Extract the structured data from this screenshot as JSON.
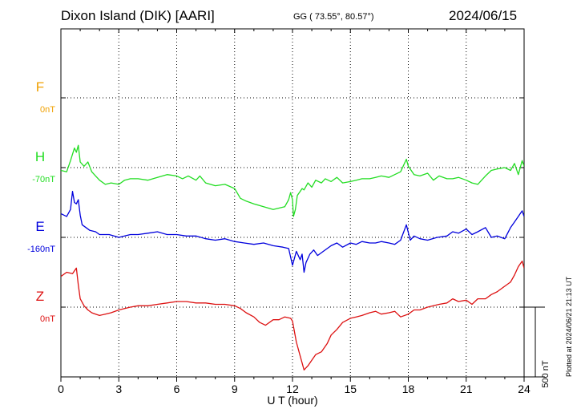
{
  "header": {
    "station": "Dixon Island (DIK)  [AARI]",
    "coords": "GG ( 73.55°,  80.57°)",
    "date": "2024/06/15"
  },
  "footer": {
    "plotted": "Plotted at 2024/06/21 21:13 UT"
  },
  "chart_data": {
    "type": "line",
    "xlabel": "U T (hour)",
    "xlim": [
      0,
      24
    ],
    "xticks": [
      0,
      3,
      6,
      9,
      12,
      15,
      18,
      21,
      24
    ],
    "scale_bar": {
      "label": "500 nT",
      "value": 500
    },
    "panels": [
      {
        "name": "F",
        "base_label": "0nT",
        "color": "#f0a000"
      },
      {
        "name": "H",
        "base_label": "-70nT",
        "color": "#22dd22"
      },
      {
        "name": "E",
        "base_label": "-160nT",
        "color": "#0000dd"
      },
      {
        "name": "Z",
        "base_label": "0nT",
        "color": "#dd1111"
      }
    ],
    "series": [
      {
        "name": "H",
        "color": "#22dd22",
        "x": [
          0,
          0.3,
          0.5,
          0.7,
          0.8,
          0.9,
          1.0,
          1.2,
          1.4,
          1.6,
          1.8,
          2.0,
          2.3,
          2.6,
          3.0,
          3.3,
          3.6,
          4.0,
          4.5,
          5.0,
          5.5,
          6.0,
          6.3,
          6.6,
          7.0,
          7.2,
          7.5,
          8.0,
          8.5,
          9.0,
          9.3,
          9.6,
          10.0,
          10.5,
          11.0,
          11.3,
          11.6,
          11.8,
          11.9,
          12.0,
          12.05,
          12.15,
          12.25,
          12.4,
          12.5,
          12.6,
          12.8,
          13.0,
          13.2,
          13.5,
          13.7,
          14.0,
          14.3,
          14.6,
          15.0,
          15.3,
          15.6,
          16.0,
          16.3,
          16.6,
          17.0,
          17.3,
          17.6,
          17.8,
          17.9,
          18.0,
          18.1,
          18.3,
          18.6,
          19.0,
          19.3,
          19.6,
          20.0,
          20.3,
          20.6,
          21.0,
          21.3,
          21.6,
          22.0,
          22.3,
          22.6,
          23.0,
          23.3,
          23.5,
          23.7,
          23.9,
          24.0
        ],
        "y": [
          -20,
          -30,
          50,
          140,
          110,
          160,
          40,
          10,
          40,
          -30,
          -60,
          -90,
          -120,
          -110,
          -120,
          -90,
          -80,
          -80,
          -90,
          -70,
          -50,
          -60,
          -80,
          -60,
          -90,
          -60,
          -110,
          -130,
          -120,
          -150,
          -220,
          -240,
          -260,
          -280,
          -300,
          -290,
          -280,
          -230,
          -180,
          -230,
          -350,
          -300,
          -200,
          -170,
          -150,
          -160,
          -110,
          -140,
          -90,
          -110,
          -80,
          -100,
          -70,
          -110,
          -100,
          -90,
          -80,
          -80,
          -70,
          -60,
          -70,
          -50,
          -30,
          30,
          60,
          10,
          -10,
          -50,
          -60,
          -40,
          -90,
          -60,
          -80,
          -80,
          -70,
          -90,
          -110,
          -120,
          -60,
          -20,
          -10,
          0,
          -20,
          30,
          -50,
          50,
          10
        ]
      },
      {
        "name": "E",
        "color": "#0000dd",
        "x": [
          0,
          0.3,
          0.5,
          0.6,
          0.7,
          0.8,
          0.9,
          1.0,
          1.1,
          1.3,
          1.5,
          1.8,
          2.0,
          2.5,
          3.0,
          3.3,
          3.6,
          4.0,
          4.5,
          5.0,
          5.5,
          6.0,
          6.5,
          7.0,
          7.5,
          8.0,
          8.5,
          9.0,
          9.5,
          10.0,
          10.5,
          11.0,
          11.5,
          11.8,
          12.0,
          12.2,
          12.4,
          12.5,
          12.6,
          12.7,
          12.9,
          13.1,
          13.3,
          13.6,
          14.0,
          14.3,
          14.6,
          15.0,
          15.3,
          15.6,
          16.0,
          16.3,
          16.6,
          17.0,
          17.3,
          17.6,
          17.9,
          18.1,
          18.3,
          18.6,
          19.0,
          19.5,
          20.0,
          20.3,
          20.6,
          21.0,
          21.3,
          21.6,
          22.0,
          22.3,
          22.6,
          23.0,
          23.3,
          23.5,
          23.7,
          23.9,
          24.0
        ],
        "y": [
          170,
          150,
          200,
          330,
          250,
          240,
          270,
          160,
          90,
          70,
          50,
          40,
          20,
          20,
          0,
          10,
          20,
          20,
          30,
          40,
          20,
          20,
          10,
          10,
          -10,
          -20,
          -10,
          -30,
          -40,
          -50,
          -40,
          -60,
          -70,
          -80,
          -200,
          -100,
          -160,
          -120,
          -250,
          -180,
          -120,
          -90,
          -130,
          -100,
          -60,
          -40,
          -70,
          -40,
          -50,
          -30,
          -40,
          -40,
          -30,
          -40,
          -50,
          -20,
          90,
          -20,
          10,
          -10,
          -20,
          0,
          10,
          40,
          30,
          60,
          20,
          40,
          70,
          0,
          10,
          -10,
          70,
          110,
          150,
          190,
          150
        ]
      },
      {
        "name": "Z",
        "color": "#dd1111",
        "x": [
          0,
          0.3,
          0.6,
          0.8,
          0.9,
          1.0,
          1.2,
          1.4,
          1.6,
          1.8,
          2.0,
          2.3,
          2.6,
          3.0,
          3.3,
          3.6,
          4.0,
          4.5,
          5.0,
          5.5,
          6.0,
          6.5,
          7.0,
          7.5,
          8.0,
          8.5,
          9.0,
          9.3,
          9.6,
          10.0,
          10.3,
          10.6,
          11.0,
          11.3,
          11.6,
          11.9,
          12.0,
          12.2,
          12.4,
          12.6,
          12.8,
          13.0,
          13.2,
          13.5,
          13.8,
          14.0,
          14.3,
          14.6,
          15.0,
          15.3,
          15.6,
          16.0,
          16.3,
          16.6,
          17.0,
          17.3,
          17.6,
          18.0,
          18.3,
          18.6,
          19.0,
          19.3,
          19.6,
          20.0,
          20.3,
          20.6,
          21.0,
          21.3,
          21.6,
          22.0,
          22.3,
          22.6,
          23.0,
          23.3,
          23.5,
          23.7,
          23.9,
          24.0
        ],
        "y": [
          220,
          250,
          240,
          280,
          160,
          60,
          10,
          -20,
          -40,
          -50,
          -60,
          -50,
          -40,
          -20,
          -10,
          0,
          10,
          10,
          20,
          30,
          40,
          40,
          30,
          30,
          20,
          20,
          10,
          -10,
          -40,
          -70,
          -110,
          -130,
          -90,
          -90,
          -70,
          -80,
          -100,
          -250,
          -350,
          -450,
          -420,
          -380,
          -340,
          -320,
          -260,
          -200,
          -160,
          -110,
          -80,
          -70,
          -60,
          -40,
          -30,
          -50,
          -40,
          -30,
          -70,
          -50,
          -20,
          -20,
          0,
          10,
          20,
          30,
          60,
          40,
          50,
          20,
          60,
          60,
          90,
          110,
          150,
          180,
          230,
          290,
          330,
          280
        ]
      }
    ]
  }
}
